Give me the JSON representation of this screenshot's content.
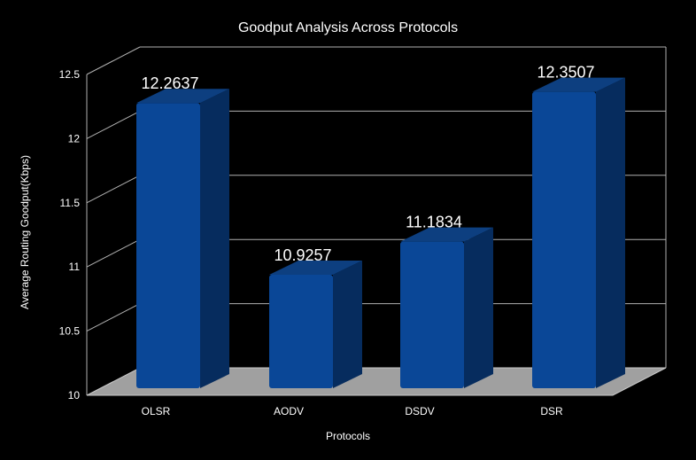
{
  "colors": {
    "background": "#000000",
    "bar_front": "#0a4797",
    "bar_side": "#062c5e",
    "bar_top": "#0d3f80",
    "floor": "#a0a0a0",
    "grid": "#b0b0b0",
    "text": "#ffffff"
  },
  "chart_data": {
    "type": "bar",
    "title": "Goodput Analysis Across Protocols",
    "xlabel": "Protocols",
    "ylabel": "Average Routing Goodput(Kbps)",
    "categories": [
      "OLSR",
      "AODV",
      "DSDV",
      "DSR"
    ],
    "values": [
      12.2637,
      10.9257,
      11.1834,
      12.3507
    ],
    "data_labels": [
      "12.2637",
      "10.9257",
      "11.1834",
      "12.3507"
    ],
    "ylim": [
      10,
      12.5
    ],
    "yticks": [
      "10",
      "10.5",
      "11",
      "11.5",
      "12",
      "12.5"
    ],
    "grid": true,
    "three_d": true
  }
}
